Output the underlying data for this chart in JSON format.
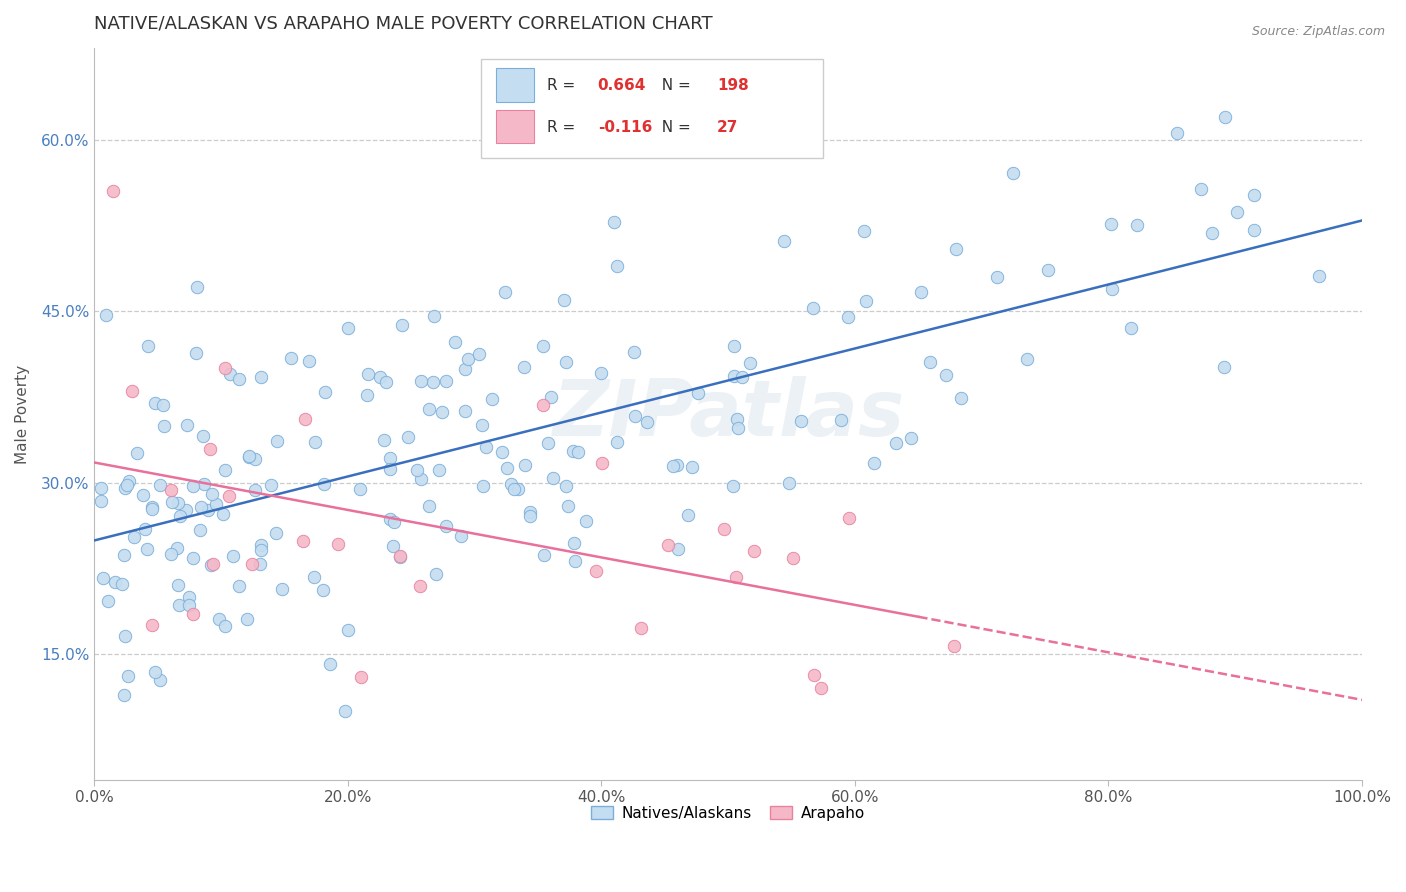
{
  "title": "NATIVE/ALASKAN VS ARAPAHO MALE POVERTY CORRELATION CHART",
  "source": "Source: ZipAtlas.com",
  "ylabel": "Male Poverty",
  "yticks_labels": [
    "15.0%",
    "30.0%",
    "45.0%",
    "60.0%"
  ],
  "ytick_values": [
    0.15,
    0.3,
    0.45,
    0.6
  ],
  "xtick_values": [
    0.0,
    0.2,
    0.4,
    0.6,
    0.8,
    1.0
  ],
  "xtick_labels": [
    "0.0%",
    "20.0%",
    "40.0%",
    "60.0%",
    "80.0%",
    "100.0%"
  ],
  "xlim": [
    0.0,
    1.0
  ],
  "ylim": [
    0.04,
    0.68
  ],
  "native_color": "#c5ddf0",
  "native_edge_color": "#7aaedb",
  "arapaho_color": "#f5b8c8",
  "arapaho_edge_color": "#e8829f",
  "trend_native_color": "#3a6fbd",
  "trend_arapaho_color": "#e8709a",
  "R_native": 0.664,
  "N_native": 198,
  "R_arapaho": -0.116,
  "N_arapaho": 27,
  "watermark": "ZIPatlas",
  "legend_native": "Natives/Alaskans",
  "legend_arapaho": "Arapaho",
  "background_color": "#ffffff",
  "grid_color": "#cccccc",
  "ytick_color": "#4a7fc1",
  "xtick_color": "#555555",
  "title_color": "#333333",
  "ylabel_color": "#555555",
  "source_color": "#888888",
  "legend_r_color": "#e03030",
  "legend_n_color": "#e03030",
  "marker_size": 80,
  "trend_linewidth": 1.8
}
